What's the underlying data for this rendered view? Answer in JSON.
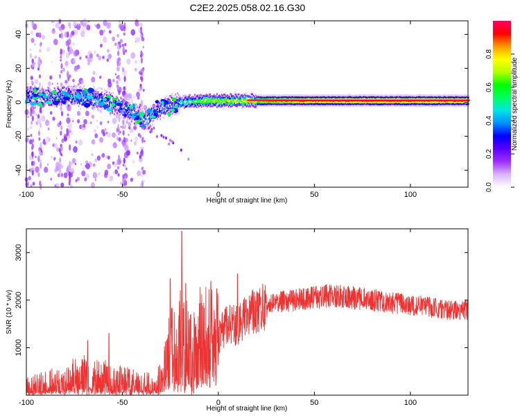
{
  "title": "C2E2.2025.058.02.16.G30",
  "chart_data": [
    {
      "type": "heatmap",
      "xlabel": "Height of straight line (km)",
      "ylabel": "Frequency (Hz)",
      "xlim": [
        -100,
        130
      ],
      "ylim": [
        -50,
        48
      ],
      "x_ticks": [
        -100,
        -50,
        0,
        50,
        100
      ],
      "y_ticks": [
        -40,
        -20,
        0,
        20,
        40
      ],
      "colorbar": {
        "label": "Normalized spectral amplitude",
        "range": [
          0,
          1
        ],
        "ticks": [
          "0.0",
          "0.2",
          "0.4",
          "0.6",
          "0.8"
        ],
        "colors": [
          "#ffffff",
          "#d9b3ff",
          "#9b30ff",
          "#5a00ff",
          "#0000ff",
          "#0090ff",
          "#00e5e5",
          "#00ff60",
          "#00ff00",
          "#b5ff00",
          "#ffff00",
          "#ff9900",
          "#ff0000",
          "#ff0066"
        ]
      },
      "ridge": [
        {
          "x": -100,
          "freq": 4,
          "amp": 0.45
        },
        {
          "x": -90,
          "freq": 3,
          "amp": 0.5
        },
        {
          "x": -80,
          "freq": 4,
          "amp": 0.5
        },
        {
          "x": -70,
          "freq": 3,
          "amp": 0.55
        },
        {
          "x": -60,
          "freq": 1,
          "amp": 0.55
        },
        {
          "x": -50,
          "freq": -3,
          "amp": 0.5
        },
        {
          "x": -45,
          "freq": -6,
          "amp": 0.55
        },
        {
          "x": -38,
          "freq": -10,
          "amp": 0.6
        },
        {
          "x": -33,
          "freq": -5,
          "amp": 0.45
        },
        {
          "x": -25,
          "freq": -2,
          "amp": 0.5
        },
        {
          "x": -20,
          "freq": 0,
          "amp": 0.55
        },
        {
          "x": -10,
          "freq": 1,
          "amp": 0.75
        },
        {
          "x": 0,
          "freq": 1,
          "amp": 0.8
        },
        {
          "x": 10,
          "freq": 1,
          "amp": 0.85
        },
        {
          "x": 25,
          "freq": 1,
          "amp": 0.9
        },
        {
          "x": 50,
          "freq": 1,
          "amp": 1.0
        },
        {
          "x": 75,
          "freq": 1,
          "amp": 1.0
        },
        {
          "x": 100,
          "freq": 1,
          "amp": 1.0
        },
        {
          "x": 130,
          "freq": 1,
          "amp": 1.0
        }
      ]
    },
    {
      "type": "line",
      "xlabel": "Height of straight line (km)",
      "ylabel": "SNR (10 * v/v)",
      "xlim": [
        -100,
        130
      ],
      "ylim": [
        0,
        3500
      ],
      "x_ticks": [
        -100,
        -50,
        0,
        50,
        100
      ],
      "y_ticks": [
        1000,
        2000,
        3000
      ],
      "color": "#ee3333",
      "series": [
        {
          "x": [
            -100,
            -90,
            -80,
            -75,
            -70,
            -65,
            -60,
            -55,
            -50,
            -45,
            -40,
            -35,
            -30,
            -25,
            -22,
            -20,
            -18,
            -15,
            -12,
            -10,
            -5,
            0,
            5,
            10,
            15,
            20,
            25,
            30,
            40,
            50,
            60,
            70,
            80,
            90,
            100,
            110,
            120,
            130
          ],
          "values": [
            200,
            280,
            350,
            420,
            450,
            430,
            400,
            380,
            350,
            300,
            250,
            260,
            350,
            1000,
            1100,
            1300,
            1250,
            900,
            1000,
            1200,
            1300,
            1250,
            1500,
            1450,
            1650,
            1750,
            1850,
            1950,
            2000,
            2050,
            2100,
            2050,
            2000,
            1950,
            1900,
            1850,
            1800,
            1800
          ]
        }
      ],
      "spikes": [
        {
          "x": -68,
          "value": 1150
        },
        {
          "x": -57,
          "value": 1300
        },
        {
          "x": -25,
          "value": 2450
        },
        {
          "x": -19,
          "value": 3450
        },
        {
          "x": -17,
          "value": 2350
        },
        {
          "x": 10,
          "value": 2550
        }
      ]
    }
  ]
}
